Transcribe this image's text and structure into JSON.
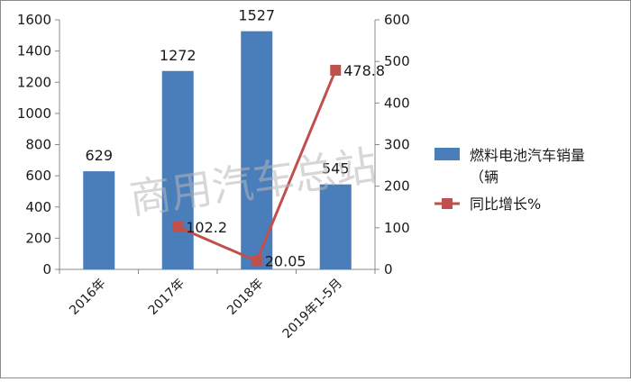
{
  "chart_data": {
    "type": "bar",
    "categories": [
      "2016年",
      "2017年",
      "2018年",
      "2019年1-5月"
    ],
    "series": [
      {
        "name": "燃料电池汽车销量（辆",
        "type": "bar",
        "axis": "left",
        "values": [
          629,
          1272,
          1527,
          545
        ],
        "color": "#4a7ebb"
      },
      {
        "name": "同比增长%",
        "type": "line",
        "axis": "right",
        "values": [
          null,
          102.2,
          20.05,
          478.8
        ],
        "color": "#c0504d"
      }
    ],
    "data_labels": {
      "bar": [
        "629",
        "1272",
        "1527",
        "545"
      ],
      "line": [
        "",
        "102.2",
        "20.05",
        "478.8"
      ]
    },
    "y_left": {
      "ylim": [
        0,
        1600
      ],
      "ticks": [
        "0",
        "200",
        "400",
        "600",
        "800",
        "1000",
        "1200",
        "1400",
        "1600"
      ]
    },
    "y_right": {
      "ylim": [
        0,
        600
      ],
      "ticks": [
        "0",
        "100",
        "200",
        "300",
        "400",
        "500",
        "600"
      ]
    },
    "legend": {
      "position": "right",
      "items": [
        "燃料电池汽车销量",
        "（辆",
        "同比增长%"
      ]
    },
    "grid": false,
    "watermark": "商用汽车总站"
  }
}
